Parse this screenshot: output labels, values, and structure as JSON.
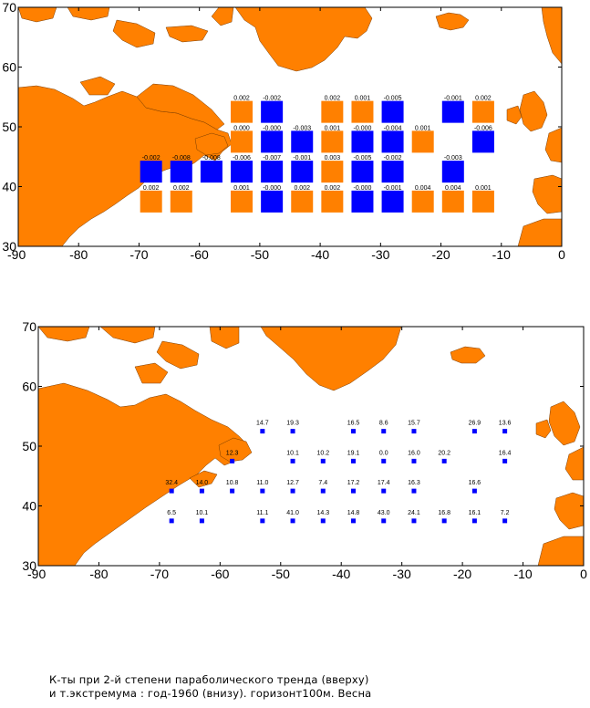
{
  "top_map": {
    "lon_ticks": [
      "-90",
      "-80",
      "-70",
      "-60",
      "-50",
      "-40",
      "-30",
      "-20",
      "-10",
      "0"
    ],
    "lat_ticks": [
      "30",
      "40",
      "50",
      "60",
      "70"
    ],
    "legend_colors": {
      "positive": "#ff8000",
      "negative": "#0000ff",
      "land": "#ff8000",
      "ocean": "#ffffff"
    }
  },
  "bottom_map": {
    "lon_ticks": [
      "-90",
      "-80",
      "-70",
      "-60",
      "-50",
      "-40",
      "-30",
      "-20",
      "-10",
      "0"
    ],
    "lat_ticks": [
      "30",
      "40",
      "50",
      "60",
      "70"
    ],
    "marker_color": "#0000ff"
  },
  "chart_data": [
    {
      "type": "heatmap",
      "title": "",
      "xlabel": "",
      "ylabel": "",
      "xlim": [
        -90,
        0
      ],
      "ylim": [
        30,
        70
      ],
      "points": [
        {
          "lon": -53,
          "lat": 52.5,
          "value": "0.002"
        },
        {
          "lon": -48,
          "lat": 52.5,
          "value": "-0.002"
        },
        {
          "lon": -38,
          "lat": 52.5,
          "value": "0.002"
        },
        {
          "lon": -33,
          "lat": 52.5,
          "value": "0.001"
        },
        {
          "lon": -28,
          "lat": 52.5,
          "value": "-0.005"
        },
        {
          "lon": -18,
          "lat": 52.5,
          "value": "-0.001"
        },
        {
          "lon": -13,
          "lat": 52.5,
          "value": "0.002"
        },
        {
          "lon": -53,
          "lat": 47.5,
          "value": "0.000"
        },
        {
          "lon": -48,
          "lat": 47.5,
          "value": "-0.000"
        },
        {
          "lon": -43,
          "lat": 47.5,
          "value": "-0.003"
        },
        {
          "lon": -38,
          "lat": 47.5,
          "value": "0.001"
        },
        {
          "lon": -33,
          "lat": 47.5,
          "value": "-0.000"
        },
        {
          "lon": -28,
          "lat": 47.5,
          "value": "-0.004"
        },
        {
          "lon": -23,
          "lat": 47.5,
          "value": "0.001"
        },
        {
          "lon": -13,
          "lat": 47.5,
          "value": "-0.006"
        },
        {
          "lon": -68,
          "lat": 42.5,
          "value": "-0.002"
        },
        {
          "lon": -63,
          "lat": 42.5,
          "value": "-0.008"
        },
        {
          "lon": -58,
          "lat": 42.5,
          "value": "-0.008"
        },
        {
          "lon": -53,
          "lat": 42.5,
          "value": "-0.006"
        },
        {
          "lon": -48,
          "lat": 42.5,
          "value": "-0.007"
        },
        {
          "lon": -43,
          "lat": 42.5,
          "value": "-0.001"
        },
        {
          "lon": -38,
          "lat": 42.5,
          "value": "0.003"
        },
        {
          "lon": -33,
          "lat": 42.5,
          "value": "-0.005"
        },
        {
          "lon": -28,
          "lat": 42.5,
          "value": "-0.002"
        },
        {
          "lon": -18,
          "lat": 42.5,
          "value": "-0.003"
        },
        {
          "lon": -68,
          "lat": 37.5,
          "value": "0.002"
        },
        {
          "lon": -63,
          "lat": 37.5,
          "value": "0.002"
        },
        {
          "lon": -53,
          "lat": 37.5,
          "value": "0.001"
        },
        {
          "lon": -48,
          "lat": 37.5,
          "value": "-0.000"
        },
        {
          "lon": -43,
          "lat": 37.5,
          "value": "0.002"
        },
        {
          "lon": -38,
          "lat": 37.5,
          "value": "0.002"
        },
        {
          "lon": -33,
          "lat": 37.5,
          "value": "-0.000"
        },
        {
          "lon": -28,
          "lat": 37.5,
          "value": "-0.001"
        },
        {
          "lon": -23,
          "lat": 37.5,
          "value": "0.004"
        },
        {
          "lon": -18,
          "lat": 37.5,
          "value": "0.004"
        },
        {
          "lon": -13,
          "lat": 37.5,
          "value": "0.001"
        }
      ]
    },
    {
      "type": "scatter",
      "title": "",
      "xlabel": "",
      "ylabel": "",
      "xlim": [
        -90,
        0
      ],
      "ylim": [
        30,
        70
      ],
      "points": [
        {
          "lon": -53,
          "lat": 52.5,
          "value": "14.7"
        },
        {
          "lon": -48,
          "lat": 52.5,
          "value": "19.3"
        },
        {
          "lon": -38,
          "lat": 52.5,
          "value": "16.5"
        },
        {
          "lon": -33,
          "lat": 52.5,
          "value": "8.6"
        },
        {
          "lon": -28,
          "lat": 52.5,
          "value": "15.7"
        },
        {
          "lon": -18,
          "lat": 52.5,
          "value": "26.9"
        },
        {
          "lon": -13,
          "lat": 52.5,
          "value": "13.6"
        },
        {
          "lon": -58,
          "lat": 47.5,
          "value": "12.3"
        },
        {
          "lon": -48,
          "lat": 47.5,
          "value": "10.1"
        },
        {
          "lon": -43,
          "lat": 47.5,
          "value": "10.2"
        },
        {
          "lon": -38,
          "lat": 47.5,
          "value": "19.1"
        },
        {
          "lon": -33,
          "lat": 47.5,
          "value": "0.0"
        },
        {
          "lon": -28,
          "lat": 47.5,
          "value": "16.0"
        },
        {
          "lon": -23,
          "lat": 47.5,
          "value": "20.2"
        },
        {
          "lon": -13,
          "lat": 47.5,
          "value": "16.4"
        },
        {
          "lon": -68,
          "lat": 42.5,
          "value": "32.4"
        },
        {
          "lon": -63,
          "lat": 42.5,
          "value": "14.0"
        },
        {
          "lon": -58,
          "lat": 42.5,
          "value": "10.8"
        },
        {
          "lon": -53,
          "lat": 42.5,
          "value": "11.0"
        },
        {
          "lon": -48,
          "lat": 42.5,
          "value": "12.7"
        },
        {
          "lon": -43,
          "lat": 42.5,
          "value": "7.4"
        },
        {
          "lon": -38,
          "lat": 42.5,
          "value": "17.2"
        },
        {
          "lon": -33,
          "lat": 42.5,
          "value": "17.4"
        },
        {
          "lon": -28,
          "lat": 42.5,
          "value": "16.3"
        },
        {
          "lon": -18,
          "lat": 42.5,
          "value": "16.6"
        },
        {
          "lon": -68,
          "lat": 37.5,
          "value": "6.5"
        },
        {
          "lon": -63,
          "lat": 37.5,
          "value": "10.1"
        },
        {
          "lon": -53,
          "lat": 37.5,
          "value": "11.1"
        },
        {
          "lon": -48,
          "lat": 37.5,
          "value": "41.0"
        },
        {
          "lon": -43,
          "lat": 37.5,
          "value": "14.3"
        },
        {
          "lon": -38,
          "lat": 37.5,
          "value": "14.8"
        },
        {
          "lon": -33,
          "lat": 37.5,
          "value": "43.0"
        },
        {
          "lon": -28,
          "lat": 37.5,
          "value": "24.1"
        },
        {
          "lon": -23,
          "lat": 37.5,
          "value": "16.8"
        },
        {
          "lon": -18,
          "lat": 37.5,
          "value": "16.1"
        },
        {
          "lon": -13,
          "lat": 37.5,
          "value": "7.2"
        }
      ]
    }
  ],
  "caption": {
    "line1": "К-ты при 2-й степени параболического тренда (вверху)",
    "line2": "и т.экстремума : год-1960 (внизу).  горизонт100м. Весна"
  }
}
